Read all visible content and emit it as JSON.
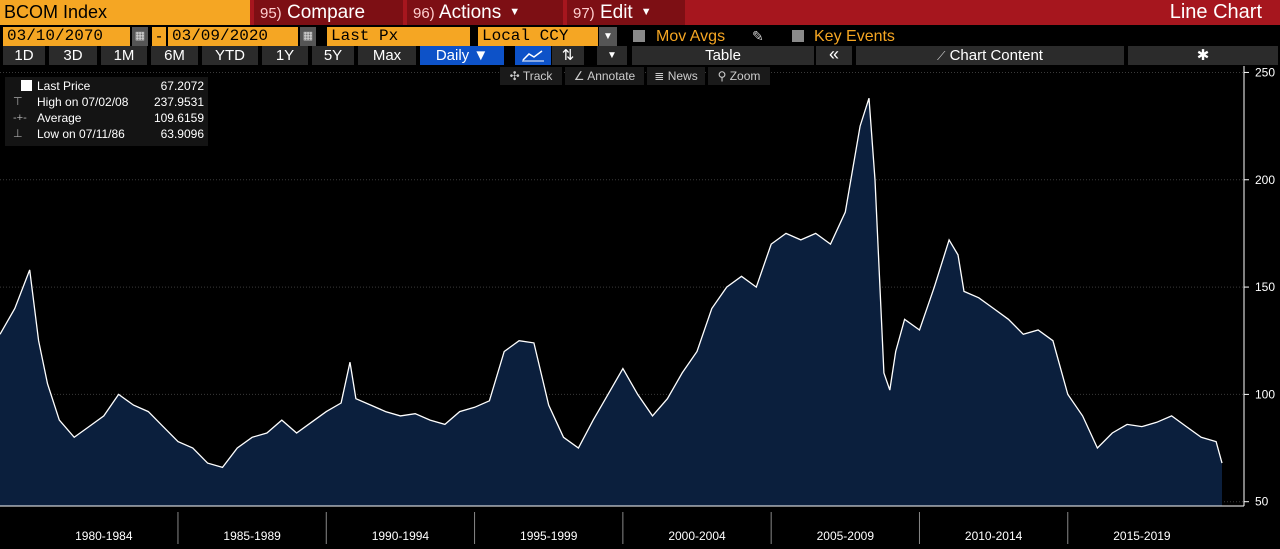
{
  "toolbar": {
    "ticker": "BCOM Index",
    "compare": {
      "num": "95)",
      "label": "Compare"
    },
    "actions": {
      "num": "96)",
      "label": "Actions"
    },
    "edit": {
      "num": "97)",
      "label": "Edit"
    },
    "chart_type": "Line Chart"
  },
  "controls": {
    "start_date": "03/10/2070",
    "dash": "-",
    "end_date": "03/09/2020",
    "price_field": "Last Px",
    "currency": "Local CCY",
    "mov_avgs": "Mov Avgs",
    "key_events": "Key Events"
  },
  "periods": [
    "1D",
    "3D",
    "1M",
    "6M",
    "YTD",
    "1Y",
    "5Y",
    "Max"
  ],
  "frequency": "Daily ▼",
  "table_label": "Table",
  "collapse_label": "«",
  "chart_content_label": "Chart Content",
  "tools": {
    "track": "Track",
    "annotate": "Annotate",
    "news": "News",
    "zoom": "Zoom"
  },
  "legend": {
    "last_price": {
      "label": "Last Price",
      "value": "67.2072"
    },
    "high": {
      "label": "High on 07/02/08",
      "value": "237.9531"
    },
    "average": {
      "label": "Average",
      "value": "109.6159"
    },
    "low": {
      "label": "Low on 07/11/86",
      "value": "63.9096"
    }
  },
  "colors": {
    "accent": "#f5a623",
    "bar": "#a6161e",
    "area": "#0b1f3d",
    "line": "#ffffff"
  },
  "chart_data": {
    "type": "area",
    "x": [
      1979.0,
      1979.5,
      1980.0,
      1980.3,
      1980.6,
      1981.0,
      1981.5,
      1982.0,
      1982.5,
      1983.0,
      1983.5,
      1984.0,
      1984.5,
      1985.0,
      1985.5,
      1986.0,
      1986.5,
      1987.0,
      1987.5,
      1988.0,
      1988.5,
      1989.0,
      1989.5,
      1990.0,
      1990.5,
      1990.8,
      1991.0,
      1991.5,
      1992.0,
      1992.5,
      1993.0,
      1993.5,
      1994.0,
      1994.5,
      1995.0,
      1995.5,
      1996.0,
      1996.5,
      1997.0,
      1997.5,
      1998.0,
      1998.5,
      1999.0,
      1999.5,
      2000.0,
      2000.5,
      2001.0,
      2001.5,
      2002.0,
      2002.5,
      2003.0,
      2003.5,
      2004.0,
      2004.5,
      2005.0,
      2005.5,
      2006.0,
      2006.5,
      2007.0,
      2007.5,
      2008.0,
      2008.3,
      2008.5,
      2008.8,
      2009.0,
      2009.2,
      2009.5,
      2010.0,
      2010.5,
      2011.0,
      2011.3,
      2011.5,
      2012.0,
      2012.5,
      2013.0,
      2013.5,
      2014.0,
      2014.5,
      2015.0,
      2015.5,
      2016.0,
      2016.5,
      2017.0,
      2017.5,
      2018.0,
      2018.5,
      2019.0,
      2019.5,
      2020.0,
      2020.2
    ],
    "y": [
      128,
      140,
      158,
      125,
      105,
      88,
      80,
      85,
      90,
      100,
      95,
      92,
      85,
      78,
      75,
      68,
      66,
      75,
      80,
      82,
      88,
      82,
      87,
      92,
      96,
      115,
      98,
      95,
      92,
      90,
      91,
      88,
      86,
      92,
      94,
      97,
      120,
      125,
      124,
      95,
      80,
      75,
      88,
      100,
      112,
      100,
      90,
      98,
      110,
      120,
      140,
      150,
      155,
      150,
      170,
      175,
      172,
      175,
      170,
      185,
      225,
      238,
      200,
      110,
      102,
      120,
      135,
      130,
      150,
      172,
      165,
      148,
      145,
      140,
      135,
      128,
      130,
      125,
      100,
      90,
      75,
      82,
      86,
      85,
      87,
      90,
      85,
      80,
      78,
      68
    ],
    "xlim": [
      1979.0,
      2020.2
    ],
    "ylim": [
      48,
      253
    ],
    "yticks": [
      50,
      100,
      150,
      200,
      250
    ],
    "xlabels": [
      "1980-1984",
      "1985-1989",
      "1990-1994",
      "1995-1999",
      "2000-2004",
      "2005-2009",
      "2010-2014",
      "2015-2019"
    ],
    "grid": true
  }
}
